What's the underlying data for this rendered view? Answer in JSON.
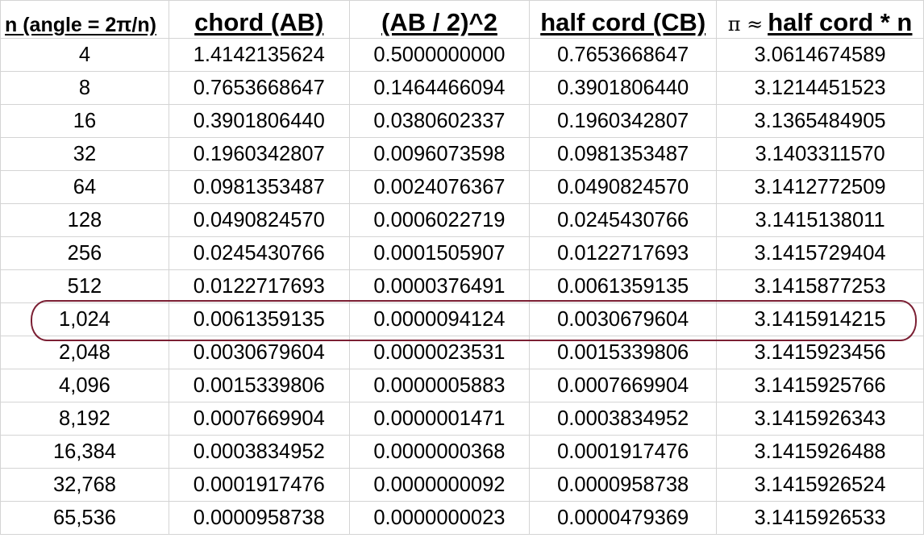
{
  "headers": {
    "n": "n (angle = 2π/n)",
    "chord": "chord (AB)",
    "ab_sq": "(AB / 2)^2",
    "half_cord": "half cord (CB)",
    "pi_prefix": "π ≈",
    "pi_est": "half cord * n"
  },
  "rows": [
    [
      "4",
      "1.4142135624",
      "0.5000000000",
      "0.7653668647",
      "3.0614674589"
    ],
    [
      "8",
      "0.7653668647",
      "0.1464466094",
      "0.3901806440",
      "3.1214451523"
    ],
    [
      "16",
      "0.3901806440",
      "0.0380602337",
      "0.1960342807",
      "3.1365484905"
    ],
    [
      "32",
      "0.1960342807",
      "0.0096073598",
      "0.0981353487",
      "3.1403311570"
    ],
    [
      "64",
      "0.0981353487",
      "0.0024076367",
      "0.0490824570",
      "3.1412772509"
    ],
    [
      "128",
      "0.0490824570",
      "0.0006022719",
      "0.0245430766",
      "3.1415138011"
    ],
    [
      "256",
      "0.0245430766",
      "0.0001505907",
      "0.0122717693",
      "3.1415729404"
    ],
    [
      "512",
      "0.0122717693",
      "0.0000376491",
      "0.0061359135",
      "3.1415877253"
    ],
    [
      "1,024",
      "0.0061359135",
      "0.0000094124",
      "0.0030679604",
      "3.1415914215"
    ],
    [
      "2,048",
      "0.0030679604",
      "0.0000023531",
      "0.0015339806",
      "3.1415923456"
    ],
    [
      "4,096",
      "0.0015339806",
      "0.0000005883",
      "0.0007669904",
      "3.1415925766"
    ],
    [
      "8,192",
      "0.0007669904",
      "0.0000001471",
      "0.0003834952",
      "3.1415926343"
    ],
    [
      "16,384",
      "0.0003834952",
      "0.0000000368",
      "0.0001917476",
      "3.1415926488"
    ],
    [
      "32,768",
      "0.0001917476",
      "0.0000000092",
      "0.0000958738",
      "3.1415926524"
    ],
    [
      "65,536",
      "0.0000958738",
      "0.0000000023",
      "0.0000479369",
      "3.1415926533"
    ]
  ],
  "highlight": {
    "row_index": 8,
    "color": "#7b1f33"
  },
  "colors": {
    "gridline": "#d4d4d4"
  }
}
